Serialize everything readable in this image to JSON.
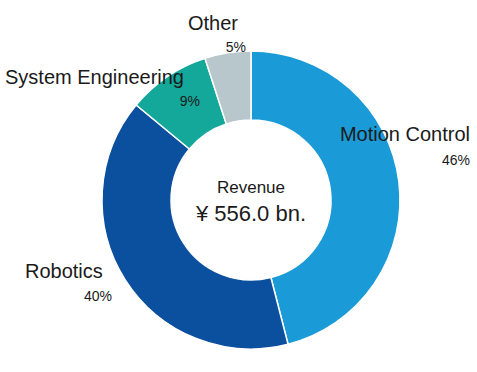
{
  "chart_data": {
    "type": "pie",
    "categories": [
      "Motion Control",
      "Robotics",
      "System Engineering",
      "Other"
    ],
    "values": [
      46,
      40,
      9,
      5
    ],
    "value_labels": [
      "46%",
      "40%",
      "9%",
      "5%"
    ],
    "colors": [
      "#1a9ad6",
      "#0b4f9f",
      "#14a89b",
      "#b8c7cc"
    ],
    "data_labels": true,
    "annotations": [
      "Revenue",
      "¥ 556.0 bn."
    ]
  }
}
